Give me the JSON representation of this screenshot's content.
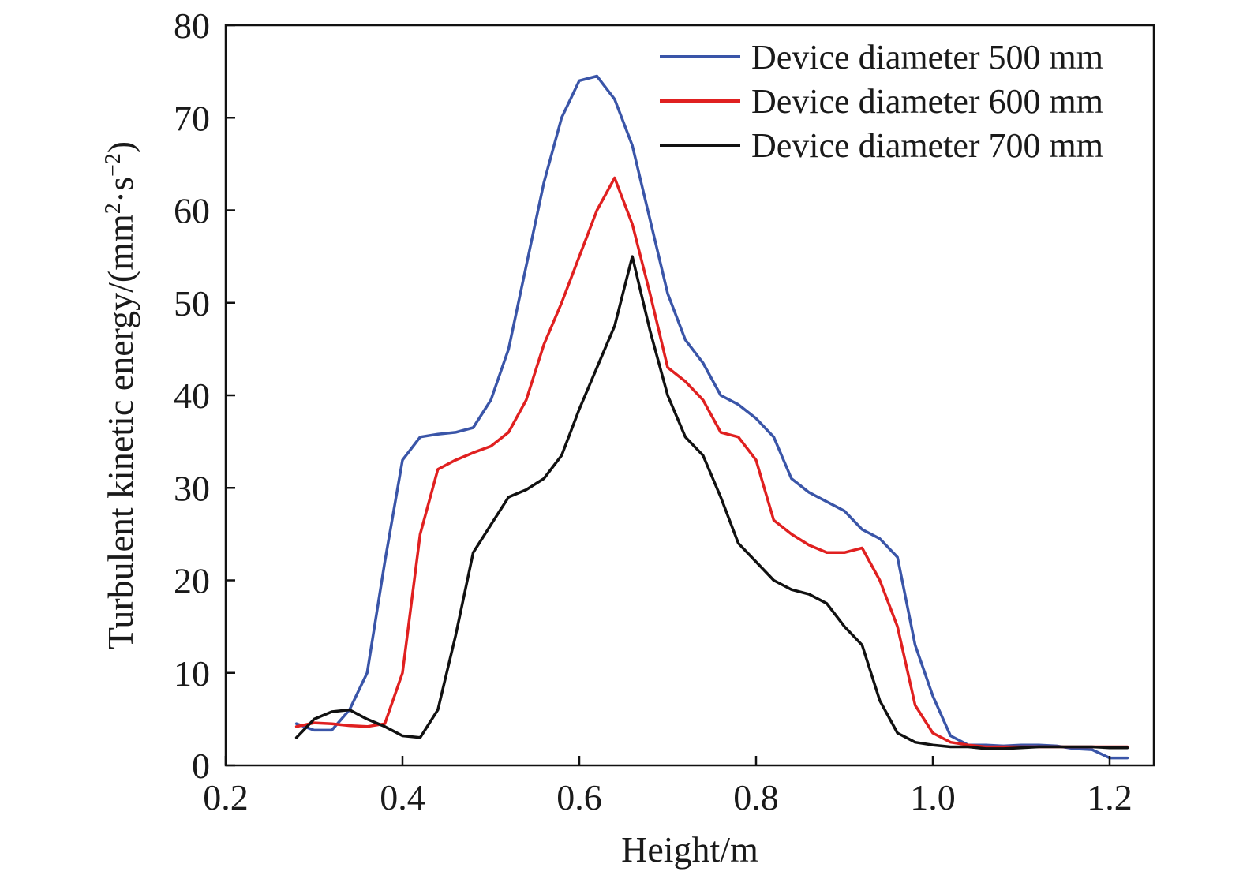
{
  "chart_data": {
    "type": "line",
    "title": "",
    "xlabel": "Height/m",
    "ylabel": {
      "prefix": "Turbulent kinetic energy/(mm",
      "sup1": "2",
      "mid": "·s",
      "sup2": "−2",
      "suffix": ")"
    },
    "xlim": [
      0.2,
      1.25
    ],
    "ylim": [
      0,
      80
    ],
    "xticks": [
      0.2,
      0.4,
      0.6,
      0.8,
      1.0,
      1.2
    ],
    "xtick_labels": [
      "0.2",
      "0.4",
      "0.6",
      "0.8",
      "1.0",
      "1.2"
    ],
    "yticks": [
      0,
      10,
      20,
      30,
      40,
      50,
      60,
      70,
      80
    ],
    "ytick_labels": [
      "0",
      "10",
      "20",
      "30",
      "40",
      "50",
      "60",
      "70",
      "80"
    ],
    "grid": false,
    "legend_position": "top-right",
    "series": [
      {
        "name": "Device diameter 500 mm",
        "color": "#3a55a8",
        "points": [
          [
            0.28,
            4.5
          ],
          [
            0.3,
            3.8
          ],
          [
            0.32,
            3.8
          ],
          [
            0.34,
            6.0
          ],
          [
            0.36,
            10.0
          ],
          [
            0.38,
            22.0
          ],
          [
            0.4,
            33.0
          ],
          [
            0.42,
            35.5
          ],
          [
            0.44,
            35.8
          ],
          [
            0.46,
            36.0
          ],
          [
            0.48,
            36.5
          ],
          [
            0.5,
            39.5
          ],
          [
            0.52,
            45.0
          ],
          [
            0.54,
            54.0
          ],
          [
            0.56,
            63.0
          ],
          [
            0.58,
            70.0
          ],
          [
            0.6,
            74.0
          ],
          [
            0.62,
            74.5
          ],
          [
            0.64,
            72.0
          ],
          [
            0.66,
            67.0
          ],
          [
            0.68,
            59.0
          ],
          [
            0.7,
            51.0
          ],
          [
            0.72,
            46.0
          ],
          [
            0.74,
            43.5
          ],
          [
            0.76,
            40.0
          ],
          [
            0.78,
            39.0
          ],
          [
            0.8,
            37.5
          ],
          [
            0.82,
            35.5
          ],
          [
            0.84,
            31.0
          ],
          [
            0.86,
            29.5
          ],
          [
            0.88,
            28.5
          ],
          [
            0.9,
            27.5
          ],
          [
            0.92,
            25.5
          ],
          [
            0.94,
            24.5
          ],
          [
            0.96,
            22.5
          ],
          [
            0.98,
            13.0
          ],
          [
            1.0,
            7.5
          ],
          [
            1.02,
            3.2
          ],
          [
            1.04,
            2.2
          ],
          [
            1.06,
            2.2
          ],
          [
            1.08,
            2.1
          ],
          [
            1.1,
            2.2
          ],
          [
            1.12,
            2.2
          ],
          [
            1.14,
            2.1
          ],
          [
            1.16,
            1.8
          ],
          [
            1.18,
            1.7
          ],
          [
            1.2,
            0.8
          ],
          [
            1.22,
            0.8
          ]
        ]
      },
      {
        "name": "Device diameter 600 mm",
        "color": "#e02020",
        "points": [
          [
            0.28,
            4.2
          ],
          [
            0.3,
            4.6
          ],
          [
            0.32,
            4.5
          ],
          [
            0.34,
            4.3
          ],
          [
            0.36,
            4.2
          ],
          [
            0.38,
            4.5
          ],
          [
            0.4,
            10.0
          ],
          [
            0.42,
            25.0
          ],
          [
            0.44,
            32.0
          ],
          [
            0.46,
            33.0
          ],
          [
            0.48,
            33.8
          ],
          [
            0.5,
            34.5
          ],
          [
            0.52,
            36.0
          ],
          [
            0.54,
            39.5
          ],
          [
            0.56,
            45.5
          ],
          [
            0.58,
            50.0
          ],
          [
            0.6,
            55.0
          ],
          [
            0.62,
            60.0
          ],
          [
            0.64,
            63.5
          ],
          [
            0.66,
            58.5
          ],
          [
            0.68,
            51.0
          ],
          [
            0.7,
            43.0
          ],
          [
            0.72,
            41.5
          ],
          [
            0.74,
            39.5
          ],
          [
            0.76,
            36.0
          ],
          [
            0.78,
            35.5
          ],
          [
            0.8,
            33.0
          ],
          [
            0.82,
            26.5
          ],
          [
            0.84,
            25.0
          ],
          [
            0.86,
            23.8
          ],
          [
            0.88,
            23.0
          ],
          [
            0.9,
            23.0
          ],
          [
            0.92,
            23.5
          ],
          [
            0.94,
            20.0
          ],
          [
            0.96,
            15.0
          ],
          [
            0.98,
            6.5
          ],
          [
            1.0,
            3.5
          ],
          [
            1.02,
            2.5
          ],
          [
            1.04,
            2.2
          ],
          [
            1.06,
            2.0
          ],
          [
            1.08,
            2.0
          ],
          [
            1.1,
            2.0
          ],
          [
            1.12,
            2.0
          ],
          [
            1.14,
            2.0
          ],
          [
            1.16,
            2.0
          ],
          [
            1.18,
            2.0
          ],
          [
            1.2,
            2.0
          ],
          [
            1.22,
            2.0
          ]
        ]
      },
      {
        "name": "Device diameter 700 mm",
        "color": "#111111",
        "points": [
          [
            0.28,
            3.0
          ],
          [
            0.3,
            5.0
          ],
          [
            0.32,
            5.8
          ],
          [
            0.34,
            6.0
          ],
          [
            0.36,
            5.0
          ],
          [
            0.38,
            4.2
          ],
          [
            0.4,
            3.2
          ],
          [
            0.42,
            3.0
          ],
          [
            0.44,
            6.0
          ],
          [
            0.46,
            14.0
          ],
          [
            0.48,
            23.0
          ],
          [
            0.5,
            26.0
          ],
          [
            0.52,
            29.0
          ],
          [
            0.54,
            29.8
          ],
          [
            0.56,
            31.0
          ],
          [
            0.58,
            33.5
          ],
          [
            0.6,
            38.5
          ],
          [
            0.62,
            43.0
          ],
          [
            0.64,
            47.5
          ],
          [
            0.66,
            55.0
          ],
          [
            0.68,
            47.0
          ],
          [
            0.7,
            40.0
          ],
          [
            0.72,
            35.5
          ],
          [
            0.74,
            33.5
          ],
          [
            0.76,
            29.0
          ],
          [
            0.78,
            24.0
          ],
          [
            0.8,
            22.0
          ],
          [
            0.82,
            20.0
          ],
          [
            0.84,
            19.0
          ],
          [
            0.86,
            18.5
          ],
          [
            0.88,
            17.5
          ],
          [
            0.9,
            15.0
          ],
          [
            0.92,
            13.0
          ],
          [
            0.94,
            7.0
          ],
          [
            0.96,
            3.5
          ],
          [
            0.98,
            2.5
          ],
          [
            1.0,
            2.2
          ],
          [
            1.02,
            2.0
          ],
          [
            1.04,
            2.0
          ],
          [
            1.06,
            1.8
          ],
          [
            1.08,
            1.8
          ],
          [
            1.1,
            1.9
          ],
          [
            1.12,
            2.0
          ],
          [
            1.14,
            2.0
          ],
          [
            1.16,
            2.0
          ],
          [
            1.18,
            2.0
          ],
          [
            1.2,
            1.9
          ],
          [
            1.22,
            1.9
          ]
        ]
      }
    ]
  }
}
